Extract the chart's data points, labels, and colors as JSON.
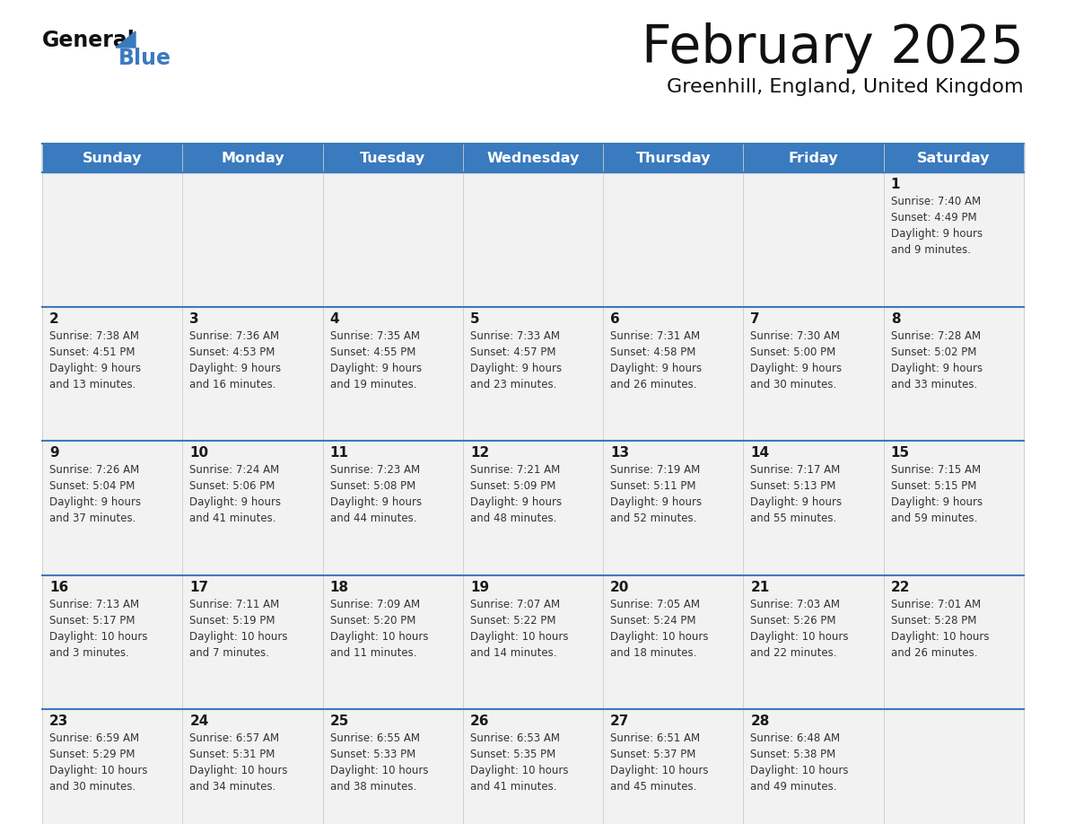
{
  "title": "February 2025",
  "subtitle": "Greenhill, England, United Kingdom",
  "header_bg": "#3a7abf",
  "header_text_color": "#ffffff",
  "days_of_week": [
    "Sunday",
    "Monday",
    "Tuesday",
    "Wednesday",
    "Thursday",
    "Friday",
    "Saturday"
  ],
  "row_bg": "#f2f2f2",
  "day_num_strip_bg": "#e8e8e8",
  "cell_text_color": "#333333",
  "day_number_color": "#1a1a1a",
  "separator_color": "#3a7abf",
  "outer_border_color": "#3a7abf",
  "calendar_data": [
    [
      {
        "day": null,
        "info": null
      },
      {
        "day": null,
        "info": null
      },
      {
        "day": null,
        "info": null
      },
      {
        "day": null,
        "info": null
      },
      {
        "day": null,
        "info": null
      },
      {
        "day": null,
        "info": null
      },
      {
        "day": 1,
        "info": "Sunrise: 7:40 AM\nSunset: 4:49 PM\nDaylight: 9 hours\nand 9 minutes."
      }
    ],
    [
      {
        "day": 2,
        "info": "Sunrise: 7:38 AM\nSunset: 4:51 PM\nDaylight: 9 hours\nand 13 minutes."
      },
      {
        "day": 3,
        "info": "Sunrise: 7:36 AM\nSunset: 4:53 PM\nDaylight: 9 hours\nand 16 minutes."
      },
      {
        "day": 4,
        "info": "Sunrise: 7:35 AM\nSunset: 4:55 PM\nDaylight: 9 hours\nand 19 minutes."
      },
      {
        "day": 5,
        "info": "Sunrise: 7:33 AM\nSunset: 4:57 PM\nDaylight: 9 hours\nand 23 minutes."
      },
      {
        "day": 6,
        "info": "Sunrise: 7:31 AM\nSunset: 4:58 PM\nDaylight: 9 hours\nand 26 minutes."
      },
      {
        "day": 7,
        "info": "Sunrise: 7:30 AM\nSunset: 5:00 PM\nDaylight: 9 hours\nand 30 minutes."
      },
      {
        "day": 8,
        "info": "Sunrise: 7:28 AM\nSunset: 5:02 PM\nDaylight: 9 hours\nand 33 minutes."
      }
    ],
    [
      {
        "day": 9,
        "info": "Sunrise: 7:26 AM\nSunset: 5:04 PM\nDaylight: 9 hours\nand 37 minutes."
      },
      {
        "day": 10,
        "info": "Sunrise: 7:24 AM\nSunset: 5:06 PM\nDaylight: 9 hours\nand 41 minutes."
      },
      {
        "day": 11,
        "info": "Sunrise: 7:23 AM\nSunset: 5:08 PM\nDaylight: 9 hours\nand 44 minutes."
      },
      {
        "day": 12,
        "info": "Sunrise: 7:21 AM\nSunset: 5:09 PM\nDaylight: 9 hours\nand 48 minutes."
      },
      {
        "day": 13,
        "info": "Sunrise: 7:19 AM\nSunset: 5:11 PM\nDaylight: 9 hours\nand 52 minutes."
      },
      {
        "day": 14,
        "info": "Sunrise: 7:17 AM\nSunset: 5:13 PM\nDaylight: 9 hours\nand 55 minutes."
      },
      {
        "day": 15,
        "info": "Sunrise: 7:15 AM\nSunset: 5:15 PM\nDaylight: 9 hours\nand 59 minutes."
      }
    ],
    [
      {
        "day": 16,
        "info": "Sunrise: 7:13 AM\nSunset: 5:17 PM\nDaylight: 10 hours\nand 3 minutes."
      },
      {
        "day": 17,
        "info": "Sunrise: 7:11 AM\nSunset: 5:19 PM\nDaylight: 10 hours\nand 7 minutes."
      },
      {
        "day": 18,
        "info": "Sunrise: 7:09 AM\nSunset: 5:20 PM\nDaylight: 10 hours\nand 11 minutes."
      },
      {
        "day": 19,
        "info": "Sunrise: 7:07 AM\nSunset: 5:22 PM\nDaylight: 10 hours\nand 14 minutes."
      },
      {
        "day": 20,
        "info": "Sunrise: 7:05 AM\nSunset: 5:24 PM\nDaylight: 10 hours\nand 18 minutes."
      },
      {
        "day": 21,
        "info": "Sunrise: 7:03 AM\nSunset: 5:26 PM\nDaylight: 10 hours\nand 22 minutes."
      },
      {
        "day": 22,
        "info": "Sunrise: 7:01 AM\nSunset: 5:28 PM\nDaylight: 10 hours\nand 26 minutes."
      }
    ],
    [
      {
        "day": 23,
        "info": "Sunrise: 6:59 AM\nSunset: 5:29 PM\nDaylight: 10 hours\nand 30 minutes."
      },
      {
        "day": 24,
        "info": "Sunrise: 6:57 AM\nSunset: 5:31 PM\nDaylight: 10 hours\nand 34 minutes."
      },
      {
        "day": 25,
        "info": "Sunrise: 6:55 AM\nSunset: 5:33 PM\nDaylight: 10 hours\nand 38 minutes."
      },
      {
        "day": 26,
        "info": "Sunrise: 6:53 AM\nSunset: 5:35 PM\nDaylight: 10 hours\nand 41 minutes."
      },
      {
        "day": 27,
        "info": "Sunrise: 6:51 AM\nSunset: 5:37 PM\nDaylight: 10 hours\nand 45 minutes."
      },
      {
        "day": 28,
        "info": "Sunrise: 6:48 AM\nSunset: 5:38 PM\nDaylight: 10 hours\nand 49 minutes."
      },
      {
        "day": null,
        "info": null
      }
    ]
  ]
}
